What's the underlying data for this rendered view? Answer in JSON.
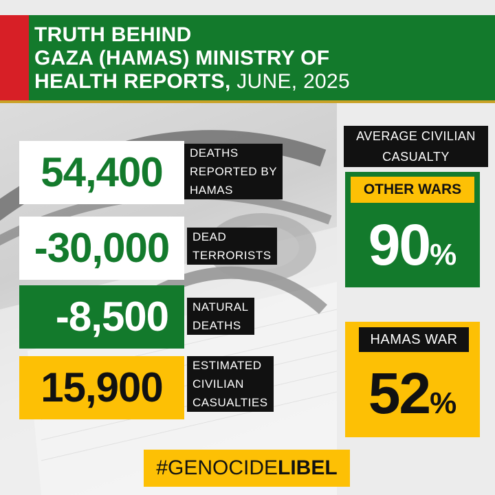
{
  "header": {
    "line1": "TRUTH BEHIND",
    "line2": "GAZA (HAMAS) MINISTRY OF",
    "line3_bold": "HEALTH REPORTS,",
    "line3_light": " JUNE, 2025"
  },
  "stats": [
    {
      "value": "54,400",
      "label": [
        "DEATHS",
        "REPORTED BY",
        "HAMAS"
      ]
    },
    {
      "value": "-30,000",
      "label": [
        "DEAD",
        "TERRORISTS"
      ]
    },
    {
      "value": "-8,500",
      "label": [
        "NATURAL",
        "DEATHS"
      ]
    },
    {
      "value": "15,900",
      "label": [
        "ESTIMATED",
        "CIVILIAN",
        "CASUALTIES"
      ]
    }
  ],
  "average": {
    "label": [
      "AVERAGE CIVILIAN",
      "CASUALTY"
    ]
  },
  "other_wars": {
    "label": "OTHER WARS",
    "value": "90",
    "unit": "%"
  },
  "hamas_war": {
    "label": "HAMAS WAR",
    "value": "52",
    "unit": "%"
  },
  "hashtag": {
    "light": "#GENOCIDE",
    "bold": "LIBEL"
  },
  "colors": {
    "green": "#137a2c",
    "red": "#d71f26",
    "yellow": "#fdc005",
    "black": "#111111",
    "gold_line": "#c9a227"
  }
}
